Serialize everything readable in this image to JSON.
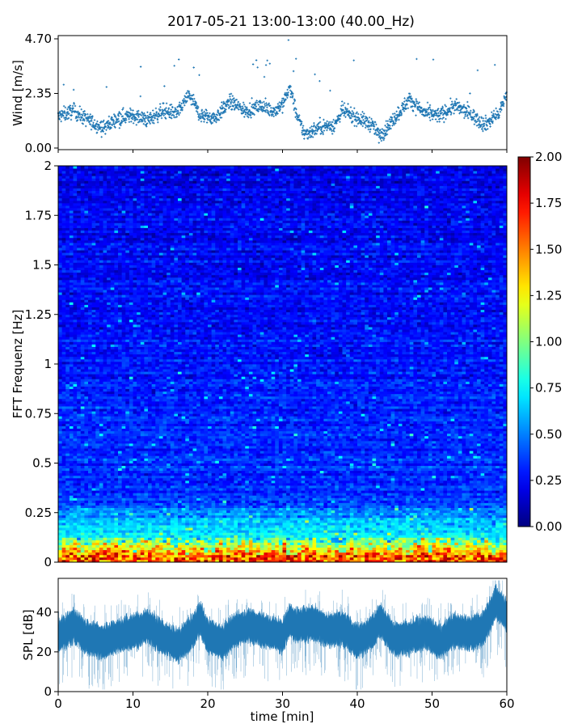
{
  "chart_data": [
    {
      "type": "scatter",
      "title": "2017-05-21 13:00-13:00 (40.00_Hz)",
      "xlabel": "",
      "ylabel": "Wind [m/s]",
      "xlim": [
        0,
        60
      ],
      "ylim": [
        0,
        4.7
      ],
      "y_ticks": [
        "0.00",
        "2.35",
        "4.70"
      ],
      "marker": "plus",
      "color": "#1f77b4",
      "baseline_mean": 1.4,
      "points_per_minute": 30,
      "envelope": [
        [
          0,
          1.35
        ],
        [
          2,
          1.6
        ],
        [
          4,
          1.2
        ],
        [
          6,
          0.85
        ],
        [
          8,
          1.3
        ],
        [
          10,
          1.4
        ],
        [
          12,
          1.2
        ],
        [
          14,
          1.6
        ],
        [
          16,
          1.5
        ],
        [
          17.5,
          2.3
        ],
        [
          19,
          1.4
        ],
        [
          21,
          1.3
        ],
        [
          23,
          2.0
        ],
        [
          25,
          1.6
        ],
        [
          27,
          1.8
        ],
        [
          29,
          1.6
        ],
        [
          30,
          1.9
        ],
        [
          31,
          2.6
        ],
        [
          32,
          1.3
        ],
        [
          33,
          0.6
        ],
        [
          35,
          0.9
        ],
        [
          37,
          1.0
        ],
        [
          38,
          1.6
        ],
        [
          40,
          1.3
        ],
        [
          42,
          1.0
        ],
        [
          43,
          0.5
        ],
        [
          45,
          1.3
        ],
        [
          47,
          2.1
        ],
        [
          49,
          1.5
        ],
        [
          51,
          1.4
        ],
        [
          53,
          1.8
        ],
        [
          55,
          1.5
        ],
        [
          57,
          1.0
        ],
        [
          59,
          1.5
        ],
        [
          60,
          2.4
        ]
      ]
    },
    {
      "type": "heatmap",
      "xlabel": "",
      "ylabel": "FFT Frequenz [Hz]",
      "xlim": [
        0,
        60
      ],
      "ylim": [
        0,
        2
      ],
      "y_ticks": [
        "0",
        "0.25",
        "0.5",
        "0.75",
        "1",
        "1.25",
        "1.5",
        "1.75",
        "2"
      ],
      "n_time_bins": 120,
      "n_freq_bins": 160,
      "colormap": "jet",
      "colorbar": {
        "min": 0,
        "max": 2,
        "ticks": [
          "0.00",
          "0.25",
          "0.50",
          "0.75",
          "1.00",
          "1.25",
          "1.50",
          "1.75",
          "2.00"
        ]
      },
      "typical_value_high_freq": 0.35,
      "low_freq_peak": 2.0
    },
    {
      "type": "area",
      "xlabel": "time [min]",
      "ylabel": "SPL [dB]",
      "xlim": [
        0,
        60
      ],
      "ylim": [
        0,
        57
      ],
      "x_ticks": [
        "0",
        "10",
        "20",
        "30",
        "40",
        "50",
        "60"
      ],
      "y_ticks": [
        "0",
        "20",
        "40"
      ],
      "color": "#1f77b4",
      "envelope": [
        [
          0,
          28
        ],
        [
          2,
          33
        ],
        [
          4,
          27
        ],
        [
          6,
          25
        ],
        [
          8,
          28
        ],
        [
          10,
          30
        ],
        [
          12,
          33
        ],
        [
          14,
          27
        ],
        [
          16,
          23
        ],
        [
          18,
          30
        ],
        [
          19,
          37
        ],
        [
          20,
          28
        ],
        [
          22,
          25
        ],
        [
          24,
          32
        ],
        [
          26,
          33
        ],
        [
          28,
          30
        ],
        [
          30,
          28
        ],
        [
          31,
          36
        ],
        [
          32,
          33
        ],
        [
          34,
          35
        ],
        [
          36,
          31
        ],
        [
          38,
          32
        ],
        [
          40,
          25
        ],
        [
          42,
          30
        ],
        [
          43,
          36
        ],
        [
          45,
          26
        ],
        [
          47,
          27
        ],
        [
          49,
          30
        ],
        [
          51,
          25
        ],
        [
          53,
          31
        ],
        [
          55,
          29
        ],
        [
          57,
          32
        ],
        [
          58.5,
          45
        ],
        [
          59.5,
          41
        ],
        [
          60,
          38
        ]
      ],
      "band_halfwidth": 6
    }
  ]
}
